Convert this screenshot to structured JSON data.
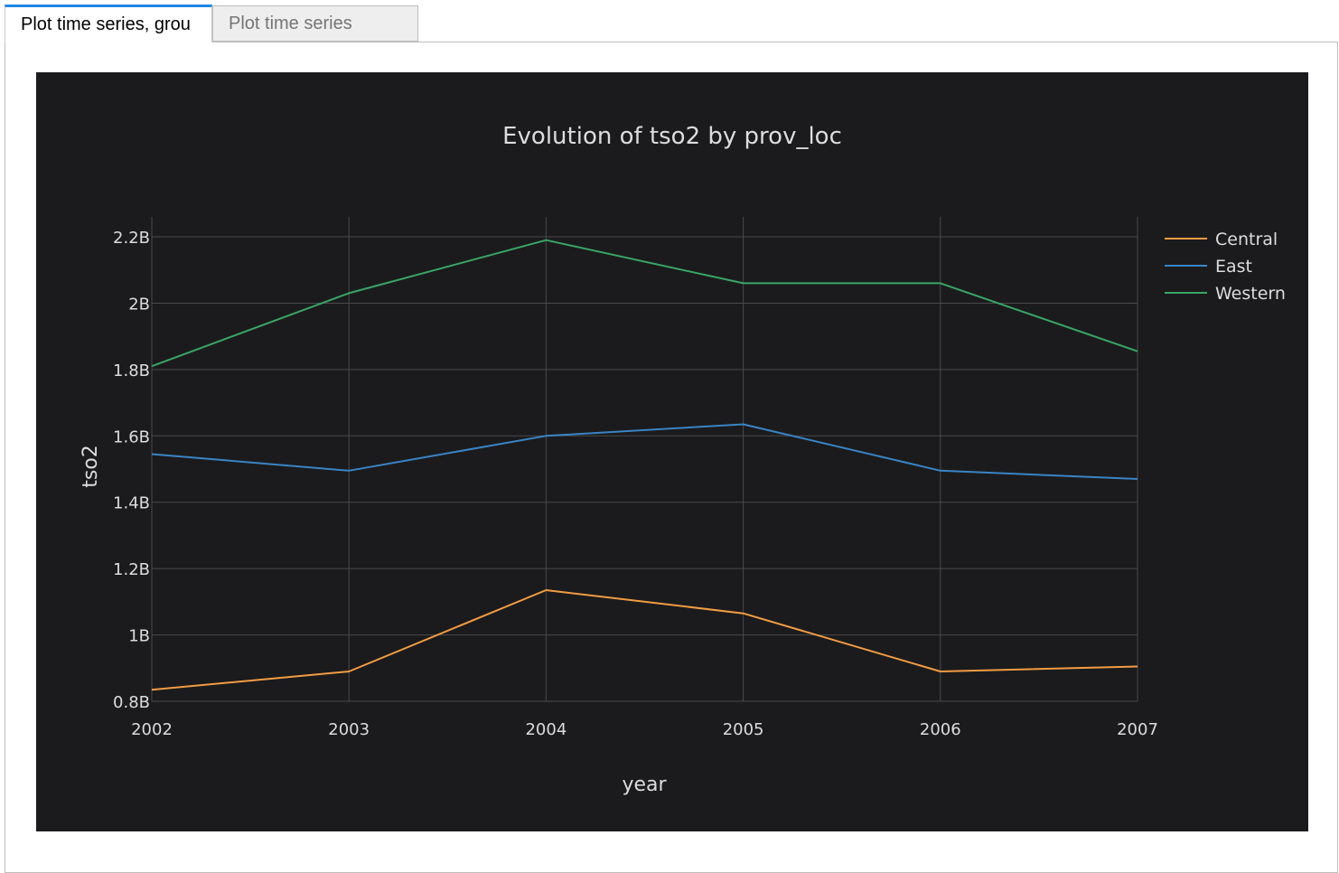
{
  "tabs": [
    {
      "label": "Plot time series, grou",
      "active": true
    },
    {
      "label": "Plot time series",
      "active": false
    }
  ],
  "colors": {
    "background": "#1b1b1d",
    "grid": "#4a4a4c",
    "text": "#dcdcdc"
  },
  "chart_data": {
    "type": "line",
    "title": "Evolution of tso2 by prov_loc",
    "xlabel": "year",
    "ylabel": "tso2",
    "x": [
      2002,
      2003,
      2004,
      2005,
      2006,
      2007
    ],
    "x_tick_labels": [
      "2002",
      "2003",
      "2004",
      "2005",
      "2006",
      "2007"
    ],
    "y_ticks": [
      0.8,
      1.0,
      1.2,
      1.4,
      1.6,
      1.8,
      2.0,
      2.2
    ],
    "y_tick_labels": [
      "0.8B",
      "1B",
      "1.2B",
      "1.4B",
      "1.6B",
      "1.8B",
      "2B",
      "2.2B"
    ],
    "ylim": [
      0.8,
      2.26
    ],
    "y_unit_multiplier": "billions",
    "grid": true,
    "legend_position": "top-right",
    "series": [
      {
        "name": "Central",
        "color": "#f39c43",
        "values": [
          0.835,
          0.89,
          1.135,
          1.065,
          0.89,
          0.905
        ]
      },
      {
        "name": "East",
        "color": "#3a84c5",
        "values": [
          1.545,
          1.495,
          1.6,
          1.635,
          1.495,
          1.47
        ]
      },
      {
        "name": "Western",
        "color": "#3aa566",
        "values": [
          1.81,
          2.03,
          2.19,
          2.06,
          2.06,
          1.855
        ]
      }
    ]
  }
}
